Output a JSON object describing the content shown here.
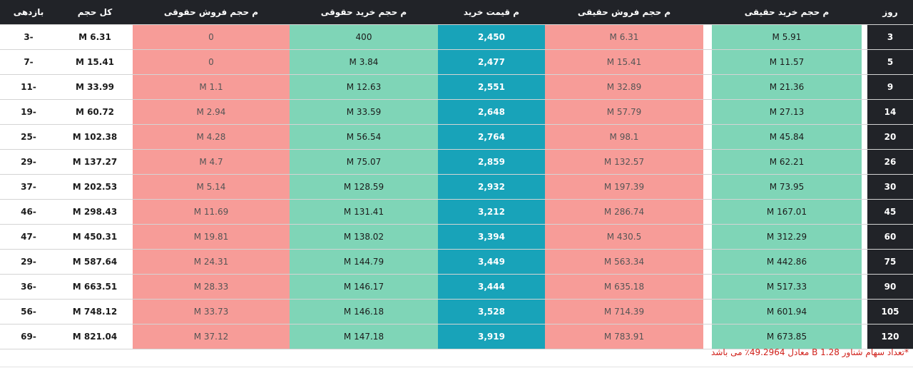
{
  "headers": {
    "diff": "بازدهی",
    "total": "کل حجم",
    "legal_sell": "م حجم فروش حقوقی",
    "legal_buy": "م حجم خرید حقوقی",
    "price": "م قیمت خرید",
    "real_sell": "م حجم فروش حقیقی",
    "real_buy": "م حجم خرید حقیقی",
    "day": "روز"
  },
  "rows": [
    {
      "day": "3",
      "real_buy": "M 5.91",
      "real_sell": "M 6.31",
      "price": "2,450",
      "legal_buy": "400",
      "legal_sell": "0",
      "total": "M 6.31",
      "diff": "3-"
    },
    {
      "day": "5",
      "real_buy": "M 11.57",
      "real_sell": "M 15.41",
      "price": "2,477",
      "legal_buy": "M 3.84",
      "legal_sell": "0",
      "total": "M 15.41",
      "diff": "7-"
    },
    {
      "day": "9",
      "real_buy": "M 21.36",
      "real_sell": "M 32.89",
      "price": "2,551",
      "legal_buy": "M 12.63",
      "legal_sell": "M 1.1",
      "total": "M 33.99",
      "diff": "11-"
    },
    {
      "day": "14",
      "real_buy": "M 27.13",
      "real_sell": "M 57.79",
      "price": "2,648",
      "legal_buy": "M 33.59",
      "legal_sell": "M 2.94",
      "total": "M 60.72",
      "diff": "19-"
    },
    {
      "day": "20",
      "real_buy": "M 45.84",
      "real_sell": "M 98.1",
      "price": "2,764",
      "legal_buy": "M 56.54",
      "legal_sell": "M 4.28",
      "total": "M 102.38",
      "diff": "25-"
    },
    {
      "day": "26",
      "real_buy": "M 62.21",
      "real_sell": "M 132.57",
      "price": "2,859",
      "legal_buy": "M 75.07",
      "legal_sell": "M 4.7",
      "total": "M 137.27",
      "diff": "29-"
    },
    {
      "day": "30",
      "real_buy": "M 73.95",
      "real_sell": "M 197.39",
      "price": "2,932",
      "legal_buy": "M 128.59",
      "legal_sell": "M 5.14",
      "total": "M 202.53",
      "diff": "37-"
    },
    {
      "day": "45",
      "real_buy": "M 167.01",
      "real_sell": "M 286.74",
      "price": "3,212",
      "legal_buy": "M 131.41",
      "legal_sell": "M 11.69",
      "total": "M 298.43",
      "diff": "46-"
    },
    {
      "day": "60",
      "real_buy": "M 312.29",
      "real_sell": "M 430.5",
      "price": "3,394",
      "legal_buy": "M 138.02",
      "legal_sell": "M 19.81",
      "total": "M 450.31",
      "diff": "47-"
    },
    {
      "day": "75",
      "real_buy": "M 442.86",
      "real_sell": "M 563.34",
      "price": "3,449",
      "legal_buy": "M 144.79",
      "legal_sell": "M 24.31",
      "total": "M 587.64",
      "diff": "29-"
    },
    {
      "day": "90",
      "real_buy": "M 517.33",
      "real_sell": "M 635.18",
      "price": "3,444",
      "legal_buy": "M 146.17",
      "legal_sell": "M 28.33",
      "total": "M 663.51",
      "diff": "36-"
    },
    {
      "day": "105",
      "real_buy": "M 601.94",
      "real_sell": "M 714.39",
      "price": "3,528",
      "legal_buy": "M 146.18",
      "legal_sell": "M 33.73",
      "total": "M 748.12",
      "diff": "56-"
    },
    {
      "day": "120",
      "real_buy": "M 673.85",
      "real_sell": "M 783.91",
      "price": "3,919",
      "legal_buy": "M 147.18",
      "legal_sell": "M 37.12",
      "total": "M 821.04",
      "diff": "69-"
    }
  ],
  "footnote": "*تعداد سهام شناور B 1.28 معادل 49.2964٪ می باشد",
  "colors": {
    "header_bg": "#212328",
    "buy_green": "#7fd5b7",
    "sell_red": "#f79c98",
    "price_teal": "#18a3b9",
    "footnote_red": "#d0201a"
  }
}
